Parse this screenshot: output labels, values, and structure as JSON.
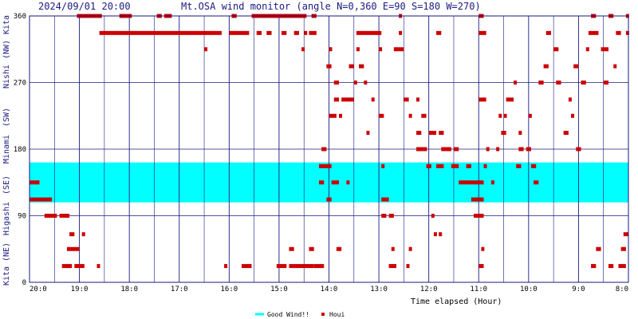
{
  "header": {
    "timestamp": "2024/09/01 20:00",
    "title": "Mt.OSA wind monitor (angle N=0,360 E=90 S=180 W=270)"
  },
  "direction_labels": [
    "Kita",
    "(NW)",
    "Nishi",
    "(SW)",
    "Minami",
    "(SE)",
    "Higashi",
    "(NE)",
    "Kita"
  ],
  "legend": {
    "band_label": "Good Wind!!",
    "series_label": "Houi"
  },
  "colors": {
    "band": "#00ffff",
    "points": "#cc0000",
    "grid": "#1a1a80",
    "text": "#1a1a80"
  },
  "chart_data": {
    "type": "scatter",
    "xlabel": "Time elapsed (Hour)",
    "ylabel": "",
    "x_tick_labels": [
      "20:0",
      "19:0",
      "18:0",
      "17:0",
      "16:0",
      "15:0",
      "14:0",
      "13:0",
      "12:0",
      "11:0",
      "10:0",
      "9:0",
      "8:0"
    ],
    "y_ticks": [
      0,
      90,
      180,
      270,
      360
    ],
    "ylim": [
      0,
      360
    ],
    "xlim_hours_elapsed": [
      0,
      12
    ],
    "good_wind_band": [
      108,
      162
    ],
    "grid": true,
    "series": [
      {
        "name": "Houi",
        "segments": [
          [
            0.0,
            0.2,
            135
          ],
          [
            0.0,
            0.45,
            112
          ],
          [
            0.3,
            0.55,
            90
          ],
          [
            0.6,
            0.8,
            90
          ],
          [
            0.65,
            0.85,
            22
          ],
          [
            0.75,
            1.0,
            45
          ],
          [
            0.8,
            0.9,
            65
          ],
          [
            0.9,
            1.1,
            22
          ],
          [
            1.05,
            1.1,
            65
          ],
          [
            0.95,
            1.45,
            360
          ],
          [
            1.35,
            1.4,
            22
          ],
          [
            1.4,
            3.85,
            337
          ],
          [
            1.8,
            1.95,
            360
          ],
          [
            1.95,
            2.05,
            360
          ],
          [
            2.55,
            2.65,
            360
          ],
          [
            2.7,
            2.85,
            360
          ],
          [
            3.5,
            3.55,
            315
          ],
          [
            3.9,
            3.95,
            22
          ],
          [
            4.05,
            4.15,
            360
          ],
          [
            4.0,
            4.4,
            337
          ],
          [
            4.25,
            4.45,
            22
          ],
          [
            4.45,
            5.55,
            360
          ],
          [
            4.55,
            4.65,
            337
          ],
          [
            4.75,
            4.85,
            337
          ],
          [
            4.95,
            5.15,
            22
          ],
          [
            5.05,
            5.15,
            337
          ],
          [
            5.2,
            5.3,
            45
          ],
          [
            5.3,
            5.4,
            337
          ],
          [
            5.2,
            5.7,
            22
          ],
          [
            5.4,
            5.5,
            360
          ],
          [
            5.45,
            5.5,
            315
          ],
          [
            5.5,
            5.55,
            337
          ],
          [
            5.6,
            5.75,
            337
          ],
          [
            5.6,
            5.7,
            45
          ],
          [
            5.65,
            5.75,
            360
          ],
          [
            5.7,
            5.9,
            22
          ],
          [
            5.85,
            5.95,
            180
          ],
          [
            5.8,
            6.05,
            157
          ],
          [
            5.8,
            5.9,
            135
          ],
          [
            5.95,
            6.05,
            112
          ],
          [
            5.95,
            6.05,
            292
          ],
          [
            6.0,
            6.05,
            315
          ],
          [
            6.0,
            6.15,
            225
          ],
          [
            6.05,
            6.2,
            135
          ],
          [
            6.1,
            6.2,
            247
          ],
          [
            6.1,
            6.2,
            270
          ],
          [
            6.15,
            6.25,
            45
          ],
          [
            6.2,
            6.25,
            225
          ],
          [
            6.25,
            6.5,
            247
          ],
          [
            6.35,
            6.4,
            135
          ],
          [
            6.4,
            6.5,
            292
          ],
          [
            6.5,
            6.55,
            270
          ],
          [
            6.55,
            6.6,
            315
          ],
          [
            6.55,
            7.05,
            337
          ],
          [
            6.6,
            6.7,
            292
          ],
          [
            6.7,
            6.75,
            270
          ],
          [
            6.75,
            6.8,
            202
          ],
          [
            6.85,
            6.9,
            247
          ],
          [
            7.0,
            7.05,
            315
          ],
          [
            7.0,
            7.1,
            225
          ],
          [
            7.05,
            7.1,
            157
          ],
          [
            7.05,
            7.2,
            112
          ],
          [
            7.05,
            7.15,
            90
          ],
          [
            7.2,
            7.3,
            90
          ],
          [
            7.2,
            7.35,
            22
          ],
          [
            7.25,
            7.3,
            45
          ],
          [
            7.4,
            7.45,
            360
          ],
          [
            7.4,
            7.45,
            337
          ],
          [
            7.3,
            7.5,
            315
          ],
          [
            7.5,
            7.6,
            247
          ],
          [
            7.55,
            7.6,
            22
          ],
          [
            7.6,
            7.65,
            225
          ],
          [
            7.6,
            7.65,
            45
          ],
          [
            7.75,
            7.8,
            247
          ],
          [
            7.75,
            7.9,
            180
          ],
          [
            7.75,
            7.85,
            202
          ],
          [
            7.85,
            7.95,
            225
          ],
          [
            7.9,
            7.95,
            180
          ],
          [
            7.95,
            8.05,
            157
          ],
          [
            8.0,
            8.15,
            202
          ],
          [
            8.05,
            8.1,
            90
          ],
          [
            8.1,
            8.15,
            65
          ],
          [
            8.15,
            8.25,
            337
          ],
          [
            8.15,
            8.3,
            157
          ],
          [
            8.2,
            8.25,
            65
          ],
          [
            8.2,
            8.3,
            202
          ],
          [
            8.25,
            8.45,
            180
          ],
          [
            8.45,
            8.6,
            157
          ],
          [
            8.5,
            8.6,
            180
          ],
          [
            8.6,
            9.1,
            135
          ],
          [
            8.75,
            8.85,
            157
          ],
          [
            8.85,
            9.1,
            112
          ],
          [
            8.9,
            9.1,
            90
          ],
          [
            9.0,
            9.1,
            360
          ],
          [
            9.0,
            9.1,
            22
          ],
          [
            9.05,
            9.1,
            45
          ],
          [
            9.0,
            9.15,
            337
          ],
          [
            9.0,
            9.15,
            247
          ],
          [
            9.1,
            9.15,
            157
          ],
          [
            9.15,
            9.2,
            180
          ],
          [
            9.25,
            9.3,
            135
          ],
          [
            9.35,
            9.4,
            180
          ],
          [
            9.4,
            9.45,
            225
          ],
          [
            9.45,
            9.55,
            202
          ],
          [
            9.5,
            9.55,
            225
          ],
          [
            9.55,
            9.7,
            247
          ],
          [
            9.7,
            9.75,
            270
          ],
          [
            9.75,
            9.85,
            157
          ],
          [
            9.8,
            9.9,
            180
          ],
          [
            9.8,
            9.85,
            202
          ],
          [
            9.95,
            10.05,
            180
          ],
          [
            10.0,
            10.05,
            225
          ],
          [
            10.05,
            10.15,
            157
          ],
          [
            10.1,
            10.2,
            135
          ],
          [
            10.2,
            10.3,
            270
          ],
          [
            10.3,
            10.4,
            292
          ],
          [
            10.35,
            10.45,
            337
          ],
          [
            10.5,
            10.6,
            315
          ],
          [
            10.55,
            10.65,
            270
          ],
          [
            10.7,
            10.8,
            202
          ],
          [
            10.8,
            10.85,
            247
          ],
          [
            10.85,
            10.9,
            225
          ],
          [
            10.9,
            11.0,
            292
          ],
          [
            10.95,
            11.05,
            180
          ],
          [
            11.05,
            11.15,
            270
          ],
          [
            11.15,
            11.2,
            315
          ],
          [
            11.2,
            11.4,
            337
          ],
          [
            11.25,
            11.35,
            360
          ],
          [
            11.25,
            11.35,
            22
          ],
          [
            11.35,
            11.45,
            45
          ],
          [
            11.45,
            11.6,
            315
          ],
          [
            11.5,
            11.6,
            270
          ],
          [
            11.6,
            11.7,
            360
          ],
          [
            11.7,
            11.75,
            292
          ],
          [
            11.75,
            11.85,
            337
          ],
          [
            11.8,
            11.95,
            22
          ],
          [
            11.85,
            11.95,
            45
          ],
          [
            11.9,
            12.0,
            65
          ],
          [
            11.95,
            12.0,
            337
          ],
          [
            11.95,
            12.0,
            360
          ],
          [
            11.6,
            11.7,
            22
          ]
        ]
      }
    ]
  }
}
